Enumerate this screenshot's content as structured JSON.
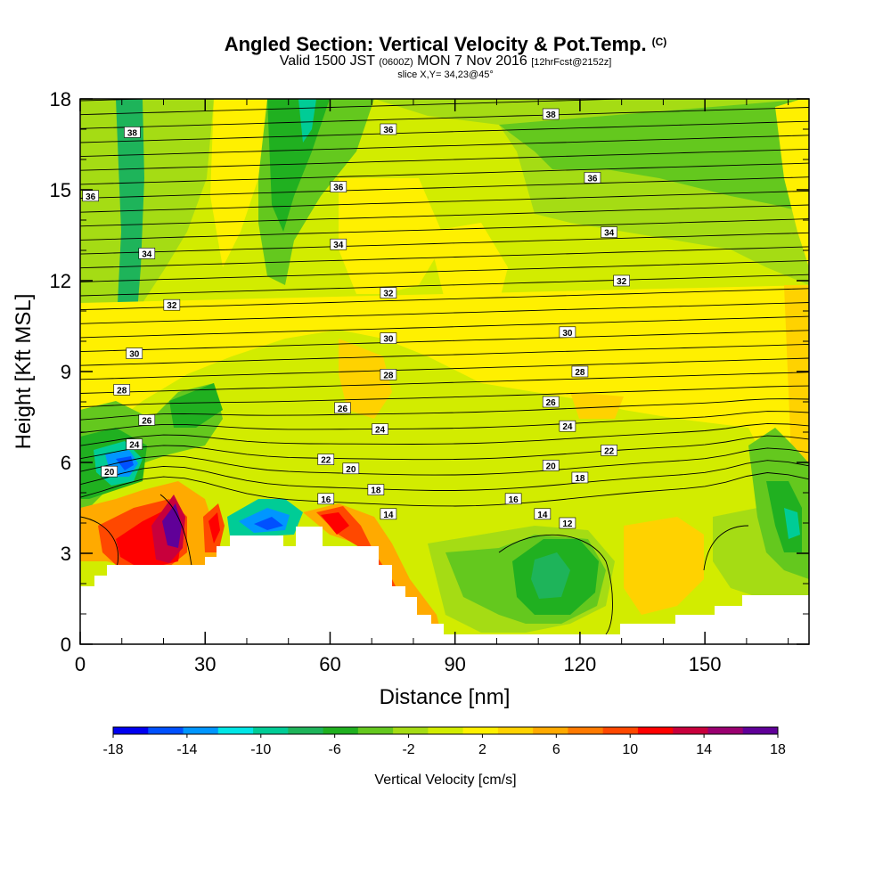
{
  "title": {
    "main": "Angled Section: Vertical Velocity & Pot.Temp.",
    "sup": "(C)",
    "valid_prefix": "Valid 1500 JST",
    "valid_z": "(0600Z)",
    "valid_date": "MON 7 Nov 2016",
    "forecast": "[12hrFcst@2152z]",
    "slice": "slice X,Y= 34,23@45°"
  },
  "chart_data": {
    "type": "heatmap",
    "xlabel": "Distance [nm]",
    "ylabel": "Height [Kft MSL]",
    "xlim": [
      0,
      175
    ],
    "ylim": [
      0,
      18
    ],
    "x_ticks": [
      0,
      30,
      60,
      90,
      120,
      150
    ],
    "y_ticks": [
      0,
      3,
      6,
      9,
      12,
      15,
      18
    ],
    "colorbar": {
      "label": "Vertical Velocity [cm/s]",
      "tick_labels": [
        "-18",
        "-14",
        "-10",
        "-6",
        "-2",
        "2",
        "6",
        "10",
        "14",
        "18"
      ],
      "levels": [
        -18,
        -16,
        -14,
        -12,
        -10,
        -8,
        -6,
        -4,
        -2,
        0,
        2,
        4,
        6,
        8,
        10,
        12,
        14,
        16,
        18
      ],
      "colors": [
        "#0000f0",
        "#0050ff",
        "#0096ff",
        "#00e6e6",
        "#00cc96",
        "#1eb45a",
        "#20b020",
        "#64c81e",
        "#a5dc14",
        "#d2ec00",
        "#fff000",
        "#ffd200",
        "#ffaa00",
        "#ff7a00",
        "#ff4800",
        "#ff0000",
        "#c8003c",
        "#9a0070",
        "#600098"
      ]
    },
    "theta_labels": [
      {
        "x": 12.5,
        "y": 16.9,
        "text": "38"
      },
      {
        "x": 74,
        "y": 17.0,
        "text": "36"
      },
      {
        "x": 113,
        "y": 17.5,
        "text": "38"
      },
      {
        "x": 2.5,
        "y": 14.8,
        "text": "36"
      },
      {
        "x": 62,
        "y": 15.1,
        "text": "36"
      },
      {
        "x": 123,
        "y": 15.4,
        "text": "36"
      },
      {
        "x": 16,
        "y": 12.9,
        "text": "34"
      },
      {
        "x": 62,
        "y": 13.2,
        "text": "34"
      },
      {
        "x": 127,
        "y": 13.6,
        "text": "34"
      },
      {
        "x": 22,
        "y": 11.2,
        "text": "32"
      },
      {
        "x": 74,
        "y": 11.6,
        "text": "32"
      },
      {
        "x": 130,
        "y": 12.0,
        "text": "32"
      },
      {
        "x": 13,
        "y": 9.6,
        "text": "30"
      },
      {
        "x": 74,
        "y": 10.1,
        "text": "30"
      },
      {
        "x": 117,
        "y": 10.3,
        "text": "30"
      },
      {
        "x": 10,
        "y": 8.4,
        "text": "28"
      },
      {
        "x": 74,
        "y": 8.9,
        "text": "28"
      },
      {
        "x": 120,
        "y": 9.0,
        "text": "28"
      },
      {
        "x": 16,
        "y": 7.4,
        "text": "26"
      },
      {
        "x": 63,
        "y": 7.8,
        "text": "26"
      },
      {
        "x": 113,
        "y": 8.0,
        "text": "26"
      },
      {
        "x": 13,
        "y": 6.6,
        "text": "24"
      },
      {
        "x": 72,
        "y": 7.1,
        "text": "24"
      },
      {
        "x": 117,
        "y": 7.2,
        "text": "24"
      },
      {
        "x": 59,
        "y": 6.1,
        "text": "22"
      },
      {
        "x": 127,
        "y": 6.4,
        "text": "22"
      },
      {
        "x": 7,
        "y": 5.7,
        "text": "20"
      },
      {
        "x": 65,
        "y": 5.8,
        "text": "20"
      },
      {
        "x": 113,
        "y": 5.9,
        "text": "20"
      },
      {
        "x": 71,
        "y": 5.1,
        "text": "18"
      },
      {
        "x": 120,
        "y": 5.5,
        "text": "18"
      },
      {
        "x": 59,
        "y": 4.8,
        "text": "16"
      },
      {
        "x": 104,
        "y": 4.8,
        "text": "16"
      },
      {
        "x": 74,
        "y": 4.3,
        "text": "14"
      },
      {
        "x": 111,
        "y": 4.3,
        "text": "14"
      },
      {
        "x": 117,
        "y": 4.0,
        "text": "12"
      }
    ]
  }
}
